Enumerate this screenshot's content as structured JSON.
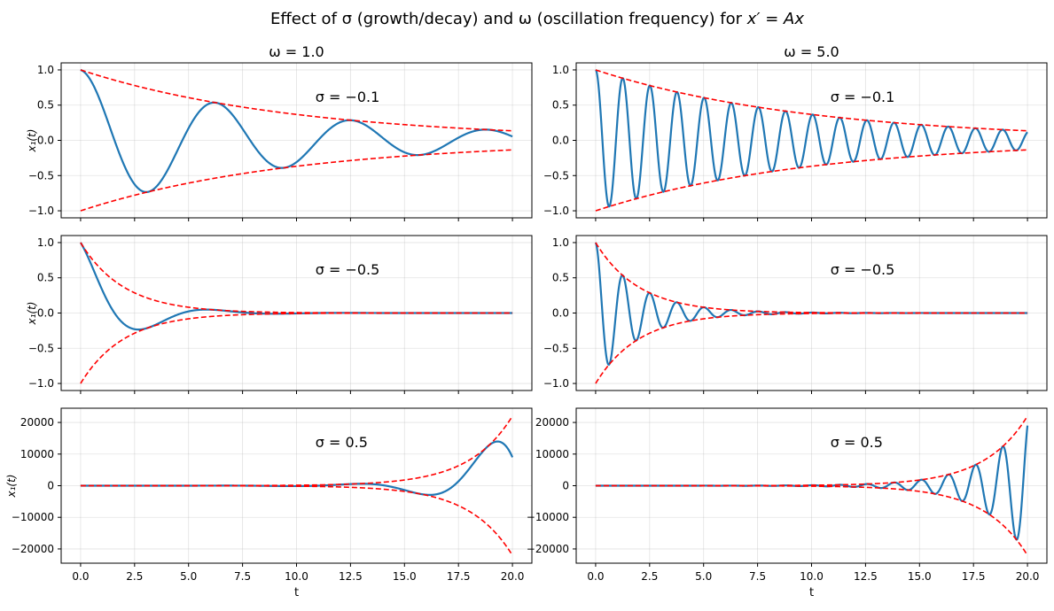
{
  "figure": {
    "title_main": "Effect of σ (growth/decay) and ω (oscillation frequency) for ",
    "title_tail": "x′ = Ax"
  },
  "colors": {
    "signal": "#1f77b4",
    "envelope": "#ff0000",
    "grid": "#b0b0b0",
    "axis": "#000000"
  },
  "chart_data": [
    {
      "type": "line",
      "row": 0,
      "col": 0,
      "sigma": -0.1,
      "omega": 1.0,
      "title": "ω = 1.0",
      "annotation": "σ = −0.1",
      "ylabel": "x₁(t)",
      "xlabel": "",
      "xlim": [
        -0.9,
        20.9
      ],
      "ylim": [
        -1.1,
        1.1
      ],
      "xticks": [
        0,
        2.5,
        5,
        7.5,
        10,
        12.5,
        15,
        17.5,
        20
      ],
      "xticklabels": [],
      "yticks": [
        -1,
        -0.5,
        0,
        0.5,
        1
      ],
      "yticklabels": [
        "−1.0",
        "−0.5",
        "0.0",
        "0.5",
        "1.0"
      ],
      "series": [
        {
          "name": "x1(t) = e^(σt)·cos(ωt)",
          "style": "solid"
        },
        {
          "name": "+e^(σt)",
          "style": "dashed"
        },
        {
          "name": "−e^(σt)",
          "style": "dashed"
        }
      ]
    },
    {
      "type": "line",
      "row": 0,
      "col": 1,
      "sigma": -0.1,
      "omega": 5.0,
      "title": "ω = 5.0",
      "annotation": "σ = −0.1",
      "ylabel": "",
      "xlabel": "",
      "xlim": [
        -0.9,
        20.9
      ],
      "ylim": [
        -1.1,
        1.1
      ],
      "xticks": [
        0,
        2.5,
        5,
        7.5,
        10,
        12.5,
        15,
        17.5,
        20
      ],
      "xticklabels": [],
      "yticks": [
        -1,
        -0.5,
        0,
        0.5,
        1
      ],
      "yticklabels": [
        "−1.0",
        "−0.5",
        "0.0",
        "0.5",
        "1.0"
      ],
      "series": [
        {
          "name": "x1(t) = e^(σt)·cos(ωt)",
          "style": "solid"
        },
        {
          "name": "+e^(σt)",
          "style": "dashed"
        },
        {
          "name": "−e^(σt)",
          "style": "dashed"
        }
      ]
    },
    {
      "type": "line",
      "row": 1,
      "col": 0,
      "sigma": -0.5,
      "omega": 1.0,
      "title": "",
      "annotation": "σ = −0.5",
      "ylabel": "x₁(t)",
      "xlabel": "",
      "xlim": [
        -0.9,
        20.9
      ],
      "ylim": [
        -1.1,
        1.1
      ],
      "xticks": [
        0,
        2.5,
        5,
        7.5,
        10,
        12.5,
        15,
        17.5,
        20
      ],
      "xticklabels": [],
      "yticks": [
        -1,
        -0.5,
        0,
        0.5,
        1
      ],
      "yticklabels": [
        "−1.0",
        "−0.5",
        "0.0",
        "0.5",
        "1.0"
      ],
      "series": [
        {
          "name": "x1(t) = e^(σt)·cos(ωt)",
          "style": "solid"
        },
        {
          "name": "+e^(σt)",
          "style": "dashed"
        },
        {
          "name": "−e^(σt)",
          "style": "dashed"
        }
      ]
    },
    {
      "type": "line",
      "row": 1,
      "col": 1,
      "sigma": -0.5,
      "omega": 5.0,
      "title": "",
      "annotation": "σ = −0.5",
      "ylabel": "",
      "xlabel": "",
      "xlim": [
        -0.9,
        20.9
      ],
      "ylim": [
        -1.1,
        1.1
      ],
      "xticks": [
        0,
        2.5,
        5,
        7.5,
        10,
        12.5,
        15,
        17.5,
        20
      ],
      "xticklabels": [],
      "yticks": [
        -1,
        -0.5,
        0,
        0.5,
        1
      ],
      "yticklabels": [
        "−1.0",
        "−0.5",
        "0.0",
        "0.5",
        "1.0"
      ],
      "series": [
        {
          "name": "x1(t) = e^(σt)·cos(ωt)",
          "style": "solid"
        },
        {
          "name": "+e^(σt)",
          "style": "dashed"
        },
        {
          "name": "−e^(σt)",
          "style": "dashed"
        }
      ]
    },
    {
      "type": "line",
      "row": 2,
      "col": 0,
      "sigma": 0.5,
      "omega": 1.0,
      "title": "",
      "annotation": "σ = 0.5",
      "ylabel": "x₁(t)",
      "xlabel": "t",
      "xlim": [
        -0.9,
        20.9
      ],
      "ylim": [
        -24500,
        24500
      ],
      "xticks": [
        0,
        2.5,
        5,
        7.5,
        10,
        12.5,
        15,
        17.5,
        20
      ],
      "xticklabels": [
        "0.0",
        "2.5",
        "5.0",
        "7.5",
        "10.0",
        "12.5",
        "15.0",
        "17.5",
        "20.0"
      ],
      "yticks": [
        -20000,
        -10000,
        0,
        10000,
        20000
      ],
      "yticklabels": [
        "−20000",
        "−10000",
        "0",
        "10000",
        "20000"
      ],
      "series": [
        {
          "name": "x1(t) = e^(σt)·cos(ωt)",
          "style": "solid"
        },
        {
          "name": "+e^(σt)",
          "style": "dashed"
        },
        {
          "name": "−e^(σt)",
          "style": "dashed"
        }
      ]
    },
    {
      "type": "line",
      "row": 2,
      "col": 1,
      "sigma": 0.5,
      "omega": 5.0,
      "title": "",
      "annotation": "σ = 0.5",
      "ylabel": "",
      "xlabel": "t",
      "xlim": [
        -0.9,
        20.9
      ],
      "ylim": [
        -24500,
        24500
      ],
      "xticks": [
        0,
        2.5,
        5,
        7.5,
        10,
        12.5,
        15,
        17.5,
        20
      ],
      "xticklabels": [
        "0.0",
        "2.5",
        "5.0",
        "7.5",
        "10.0",
        "12.5",
        "15.0",
        "17.5",
        "20.0"
      ],
      "yticks": [
        -20000,
        -10000,
        0,
        10000,
        20000
      ],
      "yticklabels": [
        "−20000",
        "−10000",
        "0",
        "10000",
        "20000"
      ],
      "series": [
        {
          "name": "x1(t) = e^(σt)·cos(ωt)",
          "style": "solid"
        },
        {
          "name": "+e^(σt)",
          "style": "dashed"
        },
        {
          "name": "−e^(σt)",
          "style": "dashed"
        }
      ]
    }
  ]
}
